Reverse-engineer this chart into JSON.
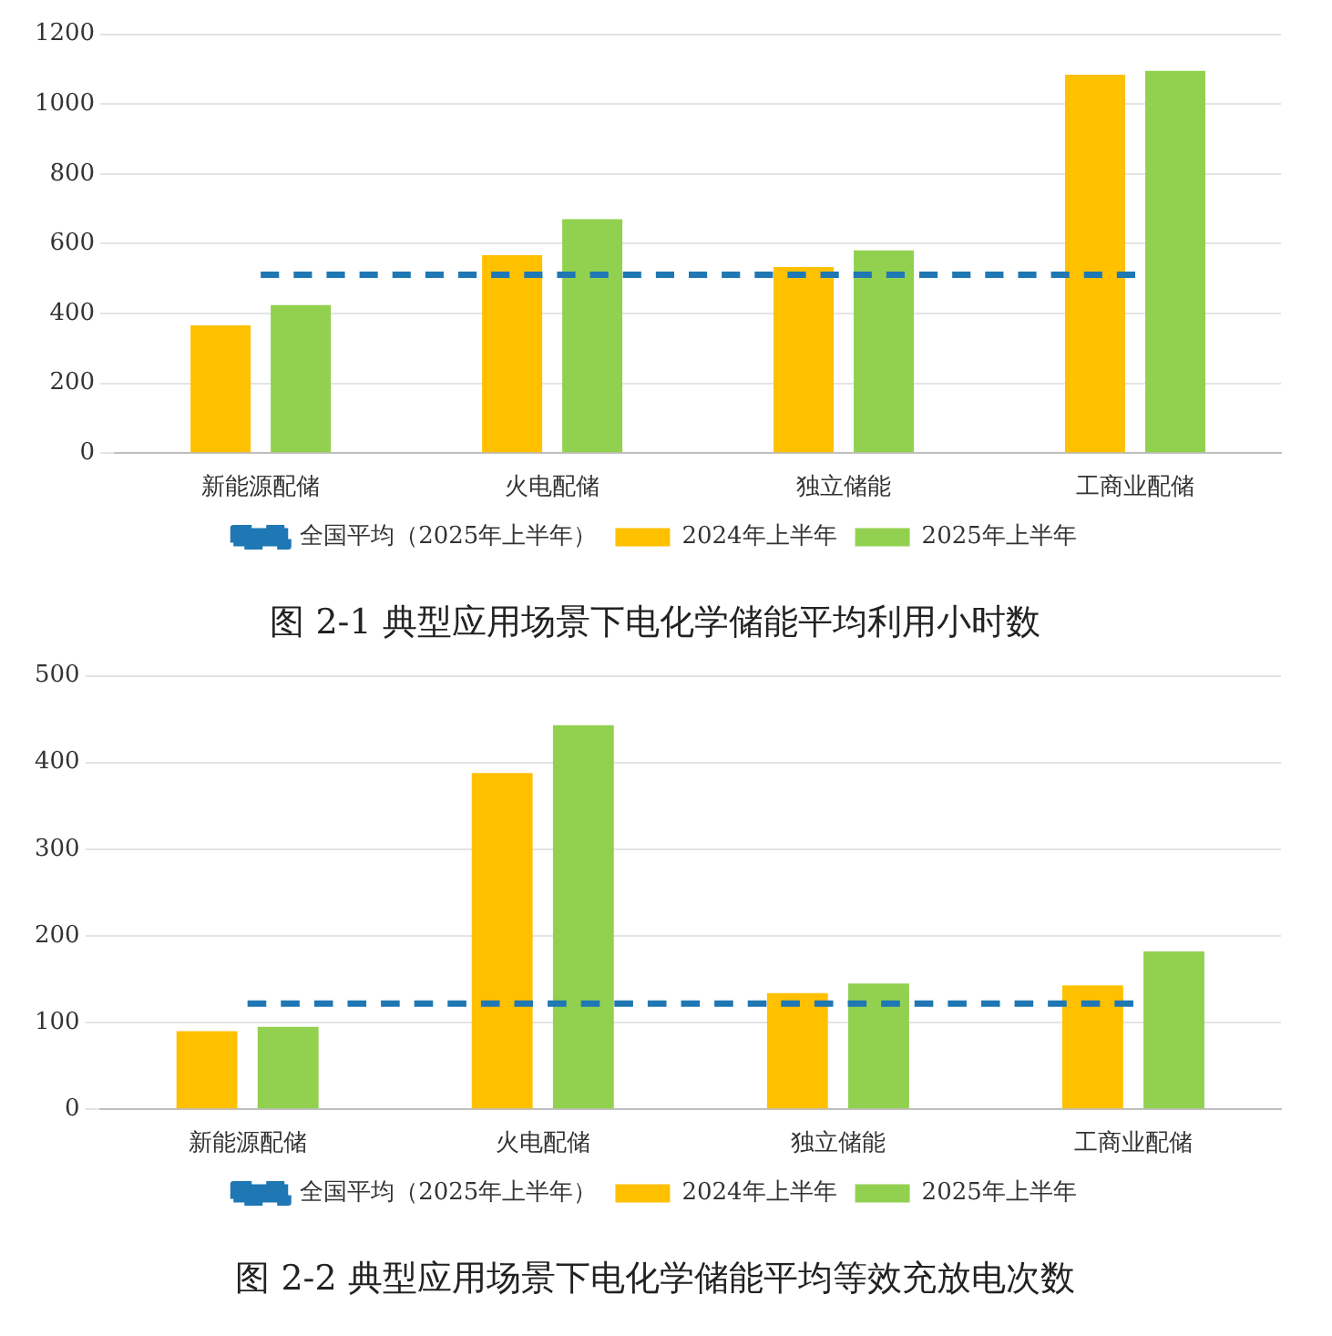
{
  "chart_data": [
    {
      "type": "bar",
      "title": "图 2-1 典型应用场景下电化学储能平均利用小时数",
      "categories": [
        "新能源配储",
        "火电配储",
        "独立储能",
        "工商业配储"
      ],
      "ylim": [
        0,
        1200
      ],
      "yticks": [
        0,
        200,
        400,
        600,
        800,
        1000,
        1200
      ],
      "grid": "y",
      "legend": "bottom",
      "series": [
        {
          "name": "2024年上半年",
          "color": "#ffc000",
          "values": [
            366,
            567,
            533,
            1084
          ]
        },
        {
          "name": "2025年上半年",
          "color": "#92d050",
          "values": [
            424,
            670,
            581,
            1095
          ]
        },
        {
          "name": "全国平均（2025年上半年）",
          "type": "line",
          "color": "#1f77b4",
          "line_style": "dashed",
          "marker": "none",
          "values": [
            511,
            511,
            511,
            511
          ]
        }
      ]
    },
    {
      "type": "bar",
      "title": "图 2-2 典型应用场景下电化学储能平均等效充放电次数",
      "categories": [
        "新能源配储",
        "火电配储",
        "独立储能",
        "工商业配储"
      ],
      "ylim": [
        0,
        500
      ],
      "yticks": [
        0,
        100,
        200,
        300,
        400,
        500
      ],
      "grid": "y",
      "legend": "bottom",
      "series": [
        {
          "name": "2024年上半年",
          "color": "#ffc000",
          "values": [
            90,
            388,
            134,
            143
          ]
        },
        {
          "name": "2025年上半年",
          "color": "#92d050",
          "values": [
            95,
            443,
            145,
            182
          ]
        },
        {
          "name": "全国平均（2025年上半年）",
          "type": "line",
          "color": "#1f77b4",
          "line_style": "dashed",
          "marker": "none",
          "values": [
            122,
            122,
            122,
            122
          ]
        }
      ]
    }
  ]
}
